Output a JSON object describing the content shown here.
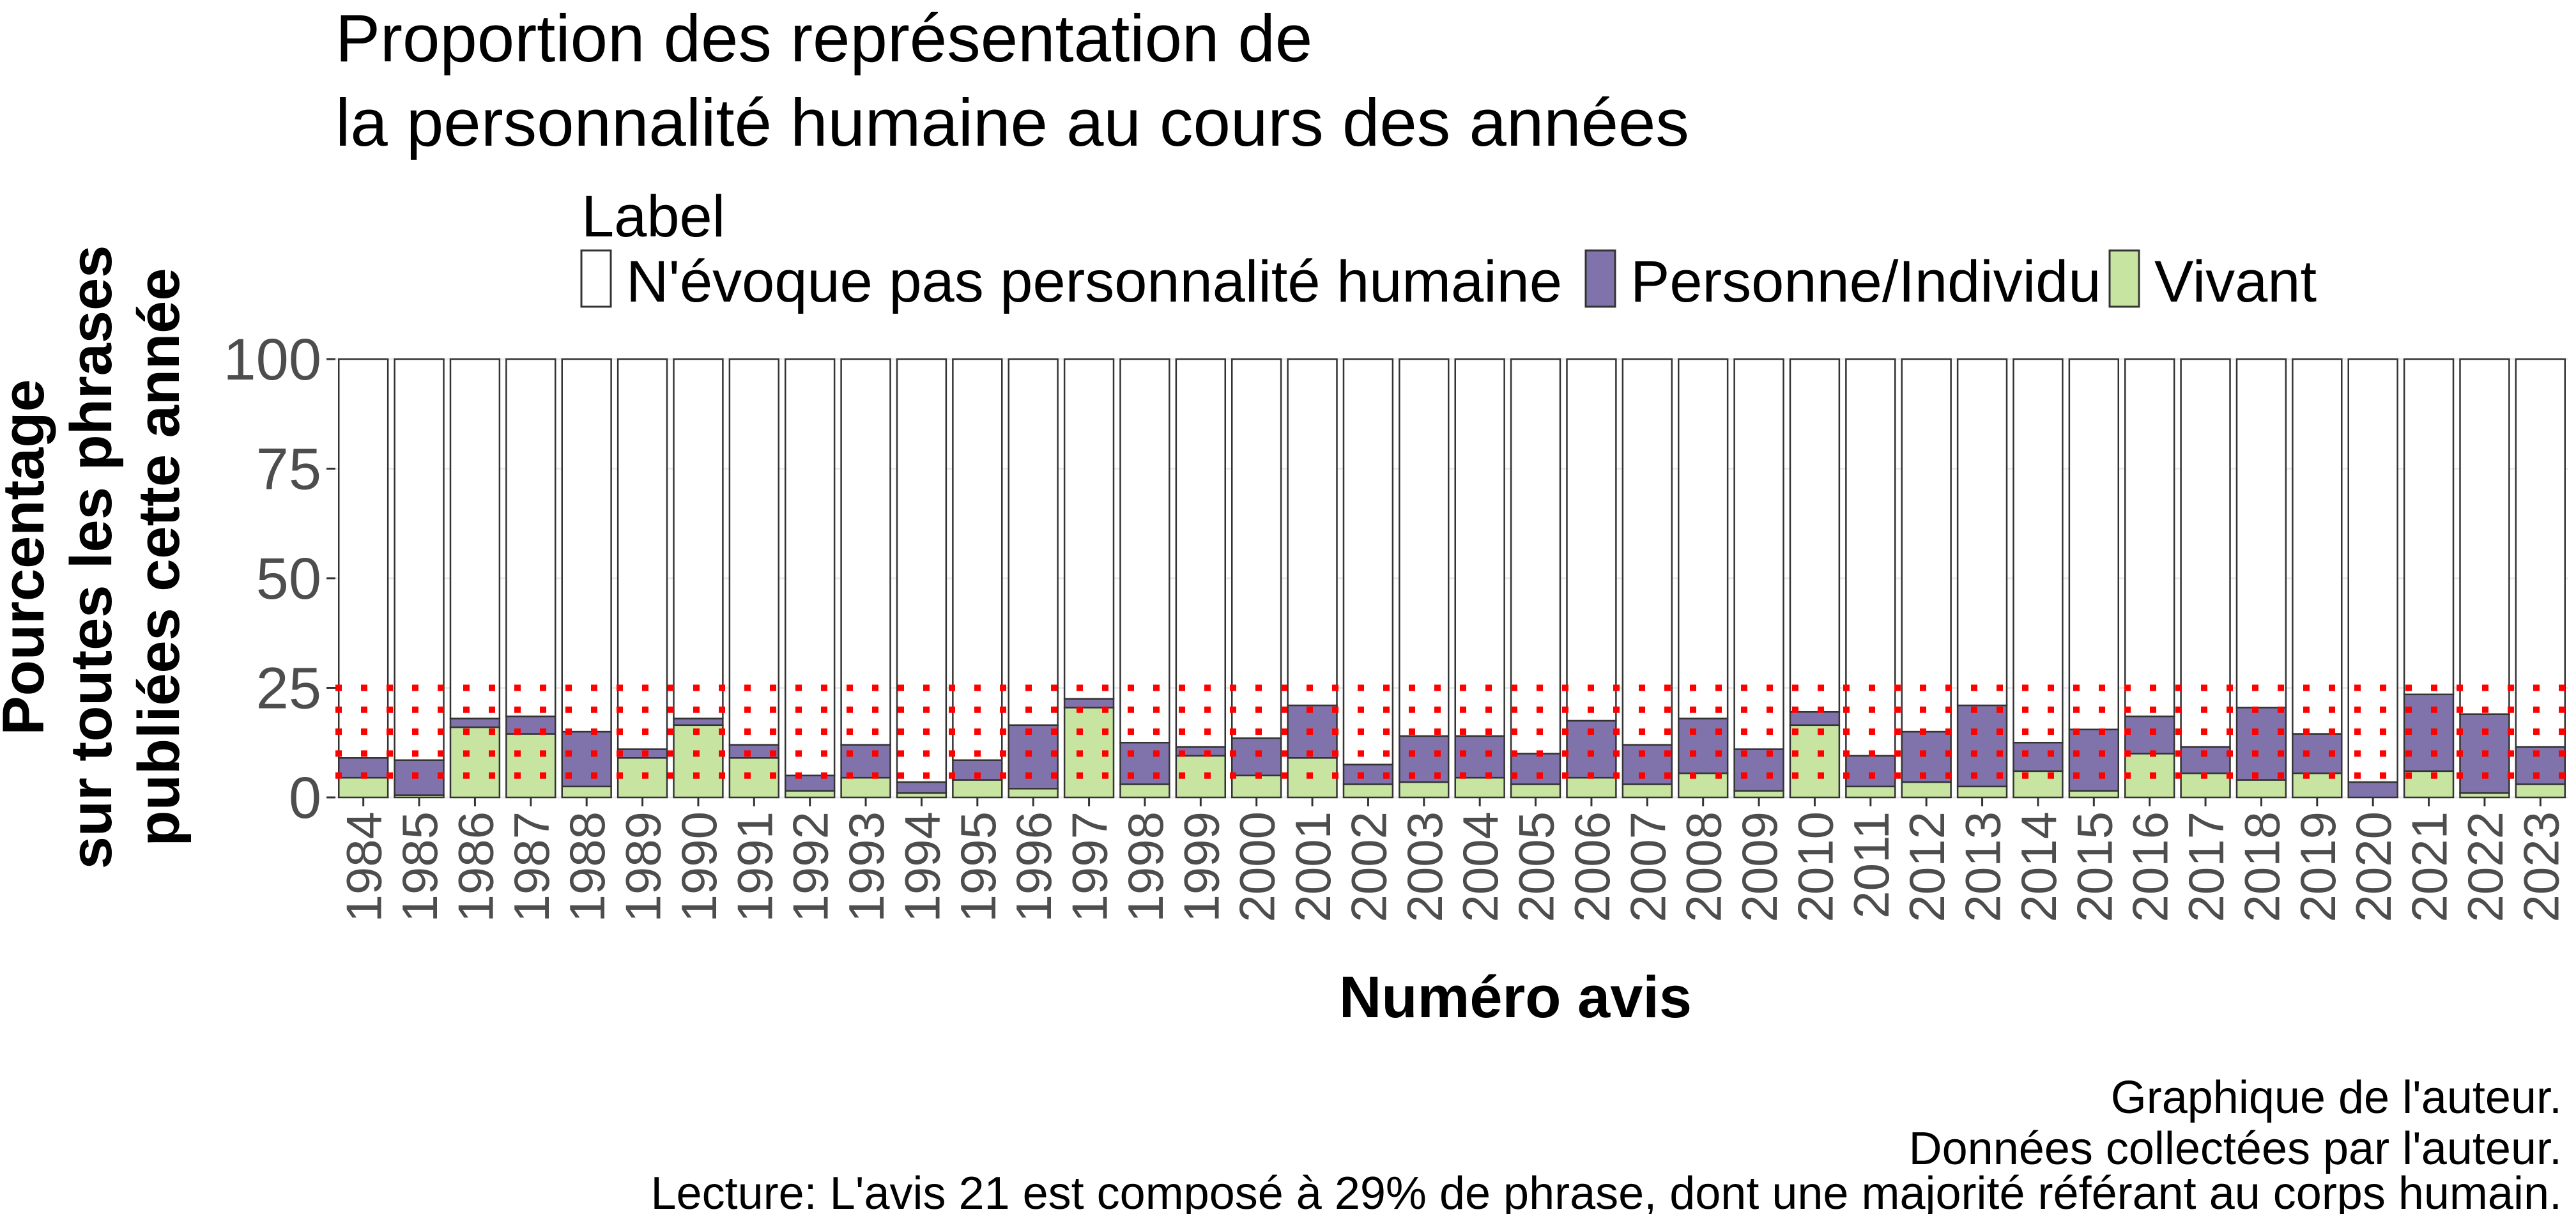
{
  "chart_data": {
    "type": "bar",
    "stacked": true,
    "title_line1": "Proportion des représentation de",
    "title_line2": "la personnalité humaine au cours des années",
    "xlabel": "Numéro avis",
    "ylabel_line1": "Pourcentage",
    "ylabel_line2": "sur toutes les phrases",
    "ylabel_line3": "publiées cette année",
    "legend_title": "Label",
    "legend_position": "top",
    "ylim": [
      0,
      100
    ],
    "yticks": [
      "0",
      "25",
      "50",
      "75",
      "100"
    ],
    "ytick_values": [
      0,
      25,
      50,
      75,
      100
    ],
    "reference_lines": [
      5,
      10,
      15,
      20,
      25
    ],
    "reference_line_color": "#ff0000",
    "categories": [
      "1984",
      "1985",
      "1986",
      "1987",
      "1988",
      "1989",
      "1990",
      "1991",
      "1992",
      "1993",
      "1994",
      "1995",
      "1996",
      "1997",
      "1998",
      "1999",
      "2000",
      "2001",
      "2002",
      "2003",
      "2004",
      "2005",
      "2006",
      "2007",
      "2008",
      "2009",
      "2010",
      "2011",
      "2012",
      "2013",
      "2014",
      "2015",
      "2016",
      "2017",
      "2018",
      "2019",
      "2020",
      "2021",
      "2022",
      "2023"
    ],
    "series": [
      {
        "name": "Vivant",
        "color": "#c7e5a1",
        "values": [
          4.5,
          0.5,
          16.0,
          14.5,
          2.5,
          9.0,
          16.5,
          9.0,
          1.5,
          4.5,
          1.0,
          4.0,
          2.0,
          20.5,
          3.0,
          9.5,
          5.0,
          9.0,
          3.0,
          3.5,
          4.5,
          3.0,
          4.5,
          3.0,
          5.5,
          1.5,
          16.5,
          2.5,
          3.5,
          2.5,
          6.0,
          1.5,
          10.0,
          5.5,
          4.0,
          5.5,
          0.0,
          6.0,
          1.0,
          3.0
        ]
      },
      {
        "name": "Personne/Individu",
        "color": "#8073ac",
        "values": [
          4.5,
          8.0,
          2.0,
          4.0,
          12.5,
          2.0,
          1.5,
          3.0,
          3.5,
          7.5,
          2.5,
          4.5,
          14.5,
          2.0,
          9.5,
          2.0,
          8.5,
          12.0,
          4.5,
          10.5,
          9.5,
          7.0,
          13.0,
          9.0,
          12.5,
          9.5,
          3.0,
          7.0,
          11.5,
          18.5,
          6.5,
          14.0,
          8.5,
          6.0,
          16.5,
          9.0,
          3.5,
          17.5,
          18.0,
          8.5
        ]
      },
      {
        "name": "N'évoque pas personnalité humaine",
        "color": "#ffffff",
        "values": [
          91.0,
          91.5,
          82.0,
          81.5,
          85.0,
          89.0,
          82.0,
          88.0,
          95.0,
          88.0,
          96.5,
          91.5,
          83.5,
          77.5,
          87.5,
          88.5,
          86.5,
          79.0,
          92.5,
          86.0,
          86.0,
          90.0,
          82.5,
          88.0,
          82.0,
          89.0,
          80.5,
          90.5,
          85.0,
          79.0,
          87.5,
          84.5,
          81.5,
          88.5,
          79.5,
          85.5,
          96.5,
          76.5,
          81.0,
          88.5
        ]
      }
    ],
    "legend_entries": [
      "N'évoque pas personnalité humaine",
      "Personne/Individu",
      "Vivant"
    ],
    "legend_colors": [
      "#ffffff",
      "#8073ac",
      "#c7e5a1"
    ],
    "caption_line1": "Graphique de l'auteur.",
    "caption_line2": "Données collectées par l'auteur.",
    "caption_line3": "Lecture: L'avis 21 est composé à 29% de phrase, dont une majorité référant au corps humain."
  }
}
